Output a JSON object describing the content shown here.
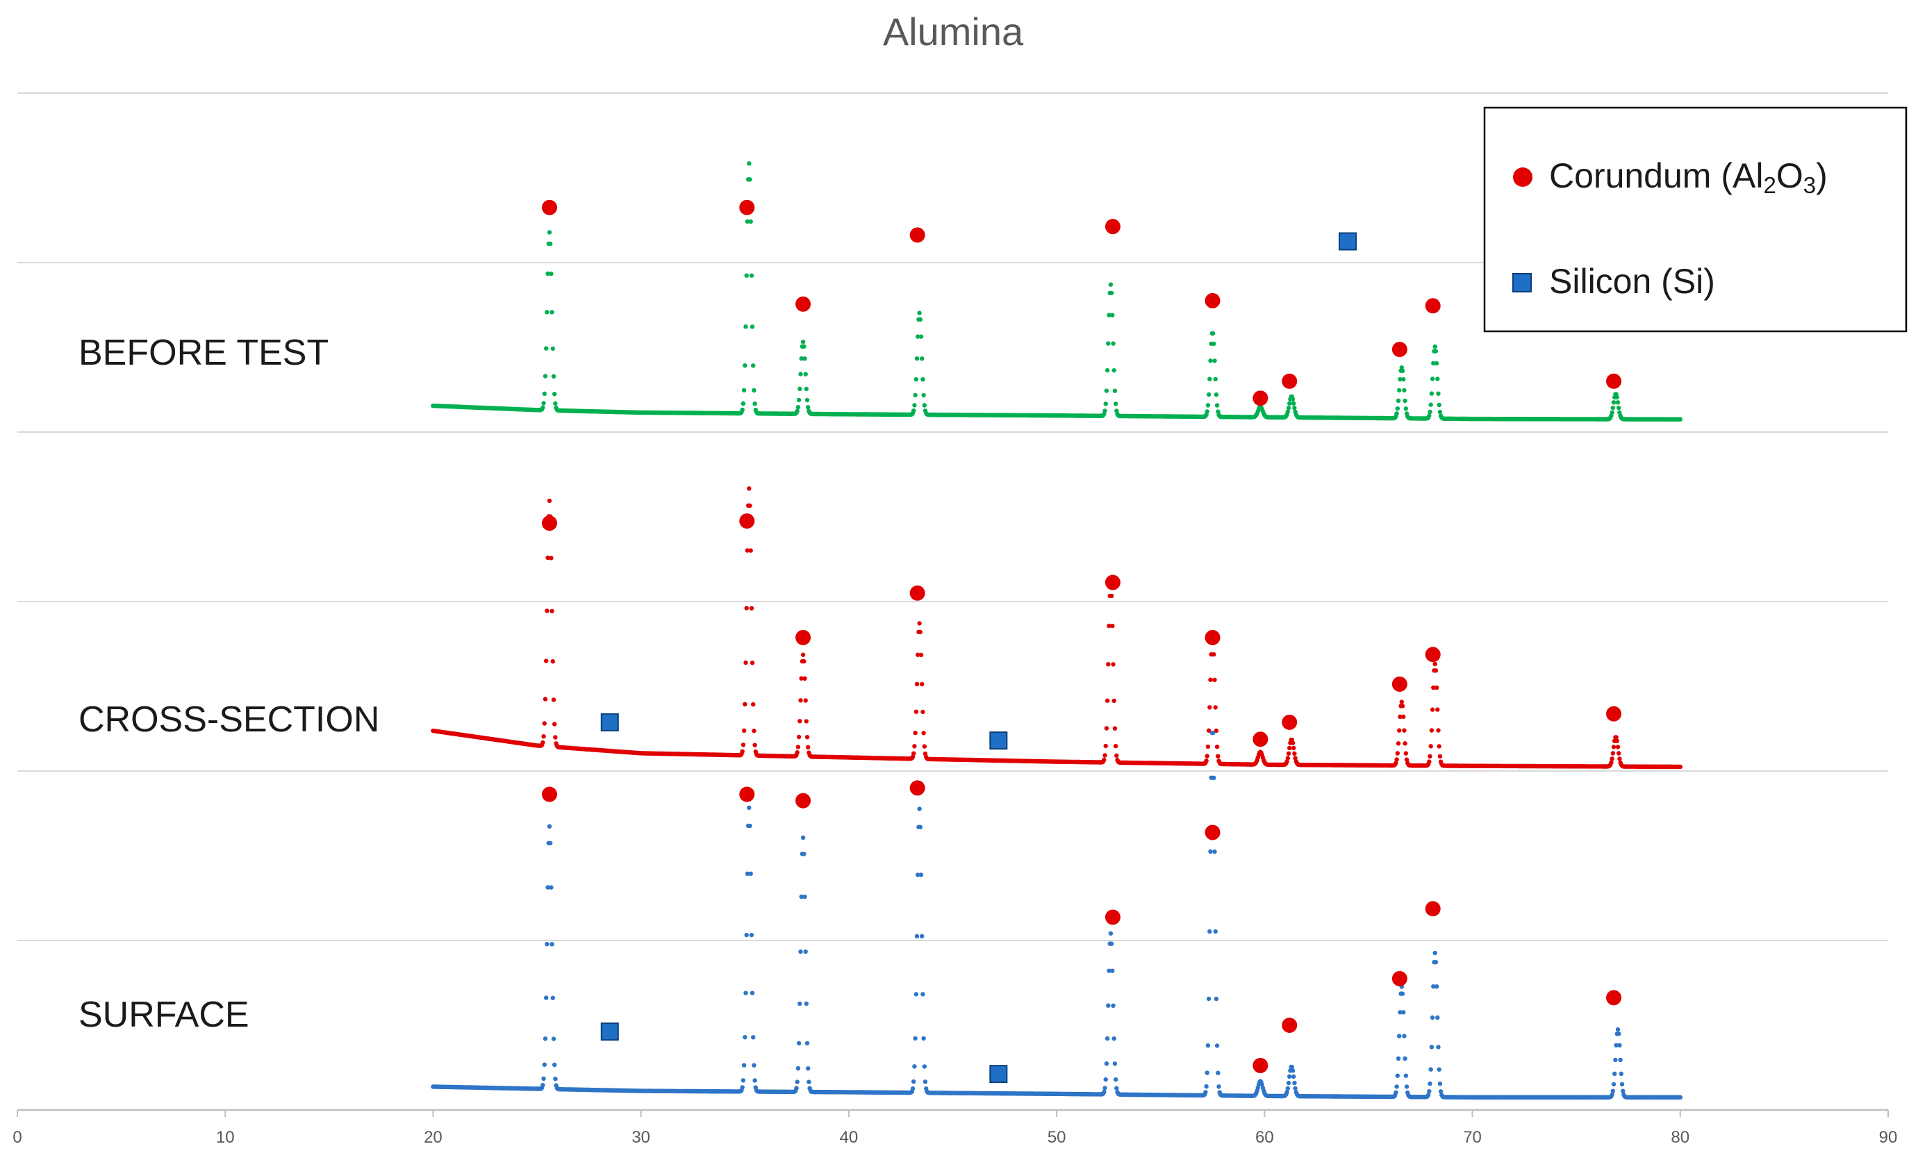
{
  "chart_data": {
    "type": "scatter",
    "title": "Alumina",
    "xlim": [
      0,
      90
    ],
    "x_ticks": [
      "0",
      "10",
      "20",
      "30",
      "40",
      "50",
      "60",
      "70",
      "80",
      "90"
    ],
    "grid": true,
    "legend_position": "top-right",
    "legend": [
      {
        "name": "Corundum (Al2O3)",
        "prefix": "Corundum (Al",
        "sub1": "2",
        "mid": "O",
        "sub2": "3",
        "suffix": ")",
        "marker": "circle",
        "color": "#e00000"
      },
      {
        "name": "Silicon (Si)",
        "prefix": "Silicon (Si)",
        "marker": "square",
        "color": "#1f6fc6"
      }
    ],
    "colors": {
      "before": "#00b050",
      "cross": "#e00000",
      "surface": "#2e75c8",
      "corundum": "#e00000",
      "silicon": "#1f6fc6",
      "grid": "#d9d9d9",
      "axis_text": "#595959",
      "title": "#595959"
    },
    "series": [
      {
        "name": "BEFORE TEST",
        "color": "before",
        "baseline": [
          [
            20,
            0.62
          ],
          [
            25,
            0.52
          ],
          [
            30,
            0.46
          ],
          [
            40,
            0.42
          ],
          [
            50,
            0.39
          ],
          [
            60,
            0.35
          ],
          [
            70,
            0.31
          ],
          [
            80,
            0.3
          ]
        ],
        "peaks": [
          [
            25.6,
            4.2
          ],
          [
            35.2,
            5.9
          ],
          [
            37.8,
            1.7
          ],
          [
            43.4,
            2.4
          ],
          [
            52.6,
            3.1
          ],
          [
            57.5,
            2.0
          ],
          [
            59.8,
            0.25
          ],
          [
            61.3,
            0.5
          ],
          [
            66.6,
            1.2
          ],
          [
            68.2,
            1.7
          ],
          [
            76.9,
            0.6
          ]
        ],
        "corundum_markers": [
          [
            25.6,
            5.3
          ],
          [
            35.1,
            5.3
          ],
          [
            37.8,
            3.02
          ],
          [
            43.3,
            4.65
          ],
          [
            52.7,
            4.85
          ],
          [
            57.5,
            3.1
          ],
          [
            59.8,
            0.8
          ],
          [
            61.2,
            1.2
          ],
          [
            66.5,
            1.95
          ],
          [
            68.1,
            2.98
          ],
          [
            76.8,
            1.2
          ]
        ],
        "silicon_markers": [
          [
            64.0,
            4.5
          ]
        ]
      },
      {
        "name": "CROSS-SECTION",
        "color": "cross",
        "baseline": [
          [
            20,
            0.95
          ],
          [
            25,
            0.6
          ],
          [
            30,
            0.42
          ],
          [
            40,
            0.32
          ],
          [
            50,
            0.22
          ],
          [
            60,
            0.15
          ],
          [
            70,
            0.12
          ],
          [
            80,
            0.1
          ]
        ],
        "peaks": [
          [
            25.6,
            5.8
          ],
          [
            35.2,
            6.3
          ],
          [
            37.8,
            2.4
          ],
          [
            43.4,
            3.2
          ],
          [
            52.6,
            4.2
          ],
          [
            57.5,
            3.0
          ],
          [
            59.8,
            0.3
          ],
          [
            61.3,
            0.6
          ],
          [
            66.6,
            1.5
          ],
          [
            68.2,
            2.4
          ],
          [
            76.9,
            0.7
          ]
        ],
        "corundum_markers": [
          [
            25.6,
            5.85
          ],
          [
            35.1,
            5.9
          ],
          [
            37.8,
            3.15
          ],
          [
            43.3,
            4.2
          ],
          [
            52.7,
            4.45
          ],
          [
            57.5,
            3.15
          ],
          [
            59.8,
            0.75
          ],
          [
            61.2,
            1.15
          ],
          [
            66.5,
            2.05
          ],
          [
            68.1,
            2.75
          ],
          [
            76.8,
            1.35
          ]
        ],
        "silicon_markers": [
          [
            28.5,
            1.15
          ],
          [
            47.2,
            0.72
          ]
        ]
      },
      {
        "name": "SURFACE",
        "color": "surface",
        "baseline": [
          [
            20,
            0.55
          ],
          [
            30,
            0.45
          ],
          [
            40,
            0.42
          ],
          [
            50,
            0.38
          ],
          [
            60,
            0.33
          ],
          [
            70,
            0.3
          ],
          [
            80,
            0.3
          ]
        ],
        "peaks": [
          [
            25.6,
            6.2
          ],
          [
            35.2,
            6.7
          ],
          [
            37.8,
            6.0
          ],
          [
            43.4,
            6.7
          ],
          [
            52.6,
            3.8
          ],
          [
            57.5,
            8.7
          ],
          [
            59.8,
            0.35
          ],
          [
            61.3,
            0.7
          ],
          [
            66.6,
            2.6
          ],
          [
            68.2,
            3.4
          ],
          [
            77.0,
            1.6
          ]
        ],
        "corundum_markers": [
          [
            25.6,
            7.45
          ],
          [
            35.1,
            7.45
          ],
          [
            37.8,
            7.3
          ],
          [
            43.3,
            7.6
          ],
          [
            52.7,
            4.55
          ],
          [
            57.5,
            6.55
          ],
          [
            59.8,
            1.05
          ],
          [
            61.2,
            2.0
          ],
          [
            66.5,
            3.1
          ],
          [
            68.1,
            4.75
          ],
          [
            76.8,
            2.65
          ]
        ],
        "silicon_markers": [
          [
            28.5,
            1.85
          ],
          [
            47.2,
            0.85
          ]
        ]
      }
    ]
  }
}
